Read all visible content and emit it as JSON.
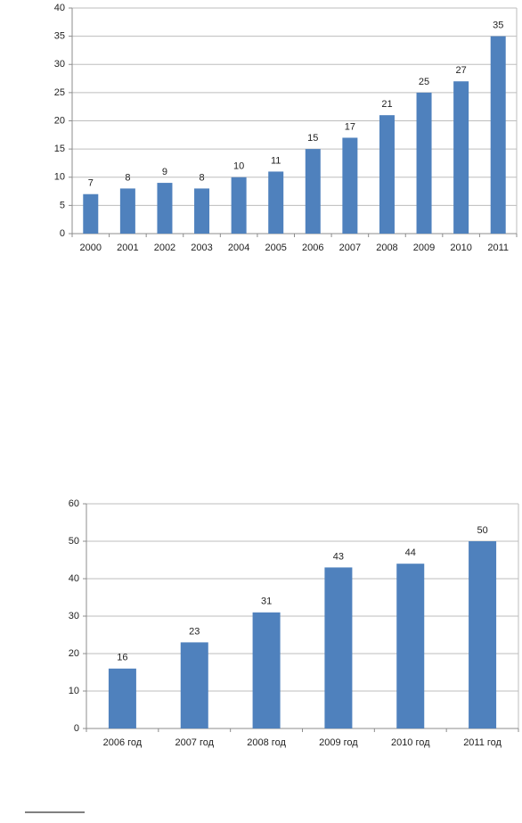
{
  "chart_data": [
    {
      "type": "bar",
      "categories": [
        "2000",
        "2001",
        "2002",
        "2003",
        "2004",
        "2005",
        "2006",
        "2007",
        "2008",
        "2009",
        "2010",
        "2011"
      ],
      "values": [
        7,
        8,
        9,
        8,
        10,
        11,
        15,
        17,
        21,
        25,
        27,
        35
      ],
      "color": "#4f81bd",
      "ylim": [
        0,
        40
      ],
      "yticks": [
        0,
        5,
        10,
        15,
        20,
        25,
        30,
        35,
        40
      ],
      "grid": true
    },
    {
      "type": "bar",
      "categories": [
        "2006 год",
        "2007 год",
        "2008 год",
        "2009 год",
        "2010 год",
        "2011 год"
      ],
      "values": [
        16,
        23,
        31,
        43,
        44,
        50
      ],
      "color": "#4f81bd",
      "ylim": [
        0,
        60
      ],
      "yticks": [
        0,
        10,
        20,
        30,
        40,
        50,
        60
      ],
      "grid": true
    }
  ]
}
